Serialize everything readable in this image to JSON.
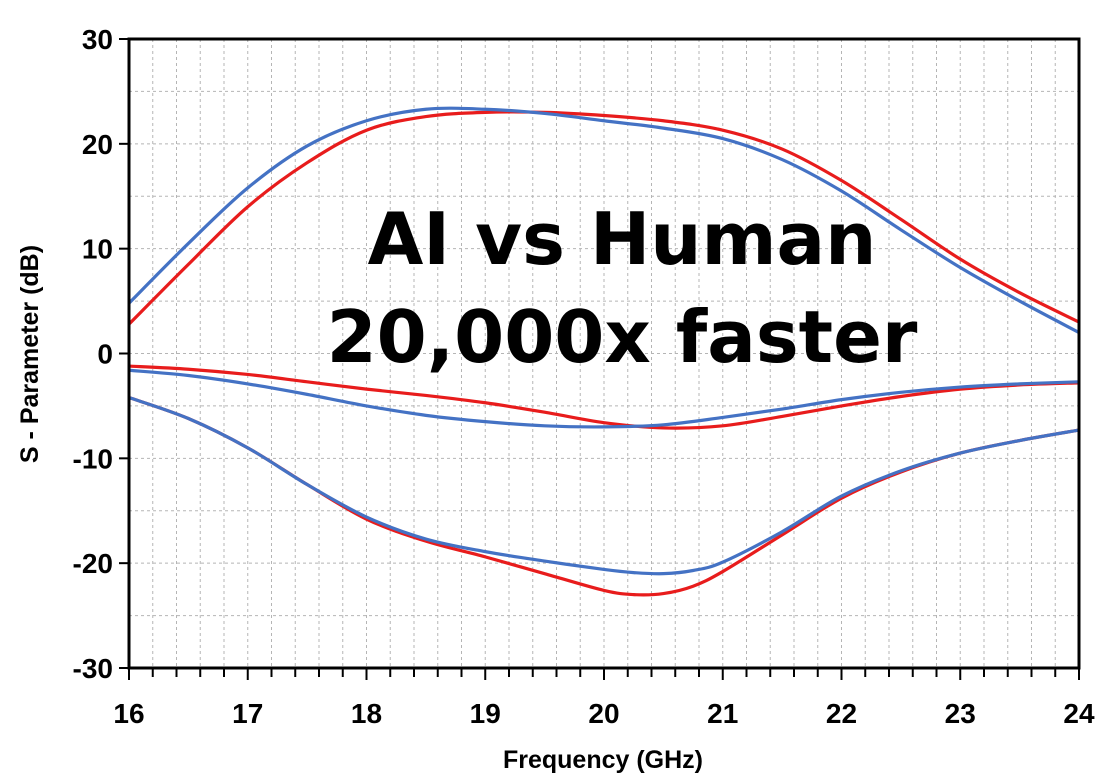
{
  "chart_data": {
    "type": "line",
    "title": "",
    "xlabel": "Frequency (GHz)",
    "ylabel": "S - Parameter (dB)",
    "xlim": [
      16,
      24
    ],
    "ylim": [
      -30,
      30
    ],
    "x_ticks": [
      16,
      17,
      18,
      19,
      20,
      21,
      22,
      23,
      24
    ],
    "y_ticks": [
      -30,
      -20,
      -10,
      0,
      10,
      20,
      30
    ],
    "grid": true,
    "legend": "none",
    "annotations": [
      "AI vs Human",
      "20,000x faster"
    ],
    "colors": {
      "red": "#e81c1c",
      "blue": "#4472c4"
    },
    "series": [
      {
        "color": "#e81c1c",
        "x": [
          16,
          16.5,
          17,
          17.5,
          18,
          18.5,
          19,
          19.5,
          20,
          20.5,
          21,
          21.5,
          22,
          22.5,
          23,
          23.5,
          24
        ],
        "y": [
          2.8,
          8.5,
          14.0,
          18.2,
          21.3,
          22.6,
          23.0,
          23.0,
          22.7,
          22.2,
          21.3,
          19.5,
          16.5,
          12.8,
          9.0,
          5.8,
          3.0
        ]
      },
      {
        "color": "#4472c4",
        "x": [
          16,
          16.5,
          17,
          17.5,
          18,
          18.5,
          19,
          19.5,
          20,
          20.5,
          21,
          21.5,
          22,
          22.5,
          23,
          23.5,
          24
        ],
        "y": [
          4.8,
          10.5,
          15.8,
          19.8,
          22.2,
          23.3,
          23.3,
          22.9,
          22.2,
          21.5,
          20.5,
          18.5,
          15.5,
          11.8,
          8.2,
          5.0,
          2.0
        ]
      },
      {
        "color": "#e81c1c",
        "x": [
          16,
          16.5,
          17,
          17.5,
          18,
          18.5,
          19,
          19.5,
          20,
          20.5,
          21,
          21.5,
          22,
          22.5,
          23,
          23.5,
          24
        ],
        "y": [
          -1.2,
          -1.5,
          -2.0,
          -2.7,
          -3.4,
          -4.0,
          -4.7,
          -5.6,
          -6.6,
          -7.1,
          -6.9,
          -6.0,
          -5.0,
          -4.1,
          -3.4,
          -3.0,
          -2.8
        ]
      },
      {
        "color": "#4472c4",
        "x": [
          16,
          16.5,
          17,
          17.5,
          18,
          18.5,
          19,
          19.5,
          20,
          20.5,
          21,
          21.5,
          22,
          22.5,
          23,
          23.5,
          24
        ],
        "y": [
          -1.6,
          -2.1,
          -2.9,
          -3.9,
          -5.0,
          -5.9,
          -6.5,
          -6.9,
          -7.0,
          -6.8,
          -6.1,
          -5.3,
          -4.4,
          -3.7,
          -3.2,
          -2.9,
          -2.7
        ]
      },
      {
        "color": "#e81c1c",
        "x": [
          16,
          16.5,
          17,
          17.5,
          18,
          18.5,
          19,
          19.5,
          20,
          20.25,
          20.5,
          20.75,
          21,
          21.5,
          22,
          22.5,
          23,
          23.5,
          24
        ],
        "y": [
          -4.2,
          -6.2,
          -9.0,
          -12.5,
          -15.8,
          -17.9,
          -19.4,
          -21.0,
          -22.6,
          -23.0,
          -22.9,
          -22.2,
          -20.8,
          -17.3,
          -13.8,
          -11.3,
          -9.5,
          -8.3,
          -7.3
        ]
      },
      {
        "color": "#4472c4",
        "x": [
          16,
          16.5,
          17,
          17.5,
          18,
          18.5,
          19,
          19.5,
          20,
          20.25,
          20.5,
          20.75,
          21,
          21.5,
          22,
          22.5,
          23,
          23.5,
          24
        ],
        "y": [
          -4.2,
          -6.2,
          -9.0,
          -12.5,
          -15.6,
          -17.7,
          -18.9,
          -19.8,
          -20.6,
          -20.9,
          -21.0,
          -20.7,
          -19.9,
          -17.0,
          -13.6,
          -11.2,
          -9.5,
          -8.3,
          -7.3
        ]
      }
    ]
  }
}
